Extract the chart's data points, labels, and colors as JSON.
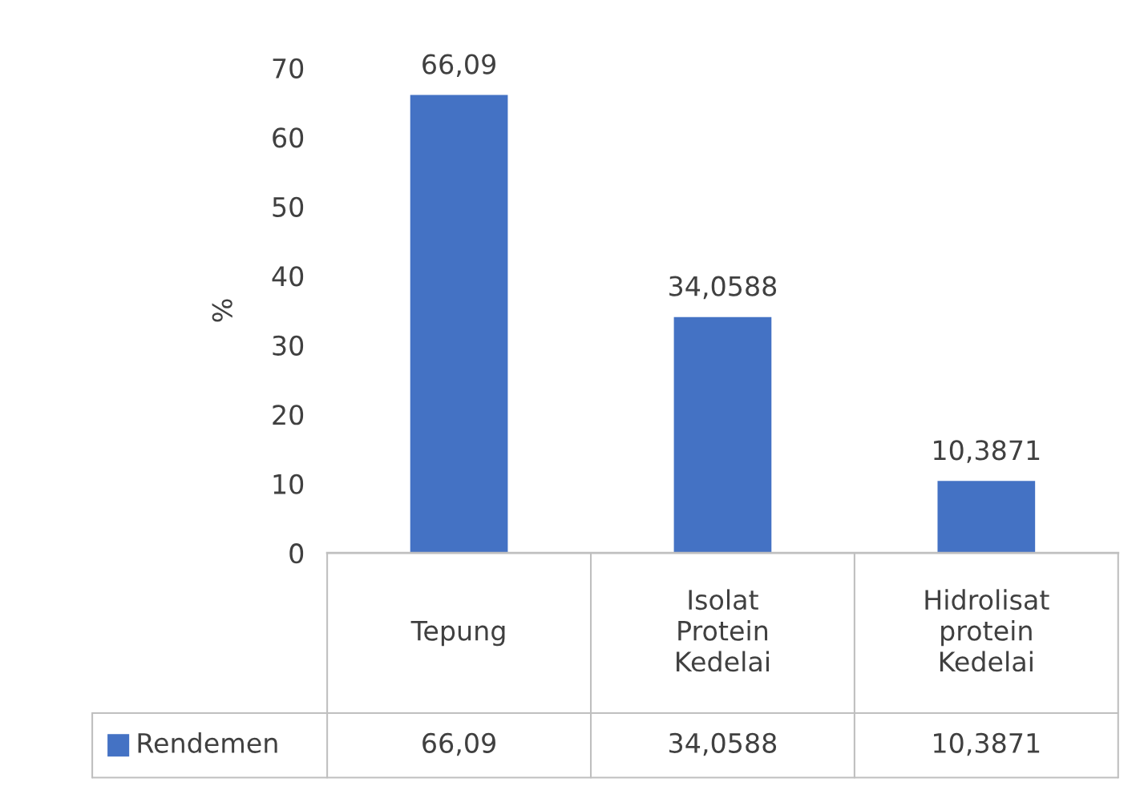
{
  "chart_data": {
    "type": "bar",
    "ylabel": "%",
    "categories": [
      "Tepung",
      "Isolat Protein Kedelai",
      "Hidrolisat protein Kedelai"
    ],
    "series": [
      {
        "name": "Rendemen",
        "color": "#4472c4",
        "values": [
          66.09,
          34.0588,
          10.3871
        ],
        "value_labels": [
          "66,09",
          "34,0588",
          "10,3871"
        ]
      }
    ],
    "ylim": [
      0,
      70
    ],
    "yticks": [
      0,
      10,
      20,
      30,
      40,
      50,
      60,
      70
    ],
    "grid": false,
    "legend": "bottom"
  }
}
